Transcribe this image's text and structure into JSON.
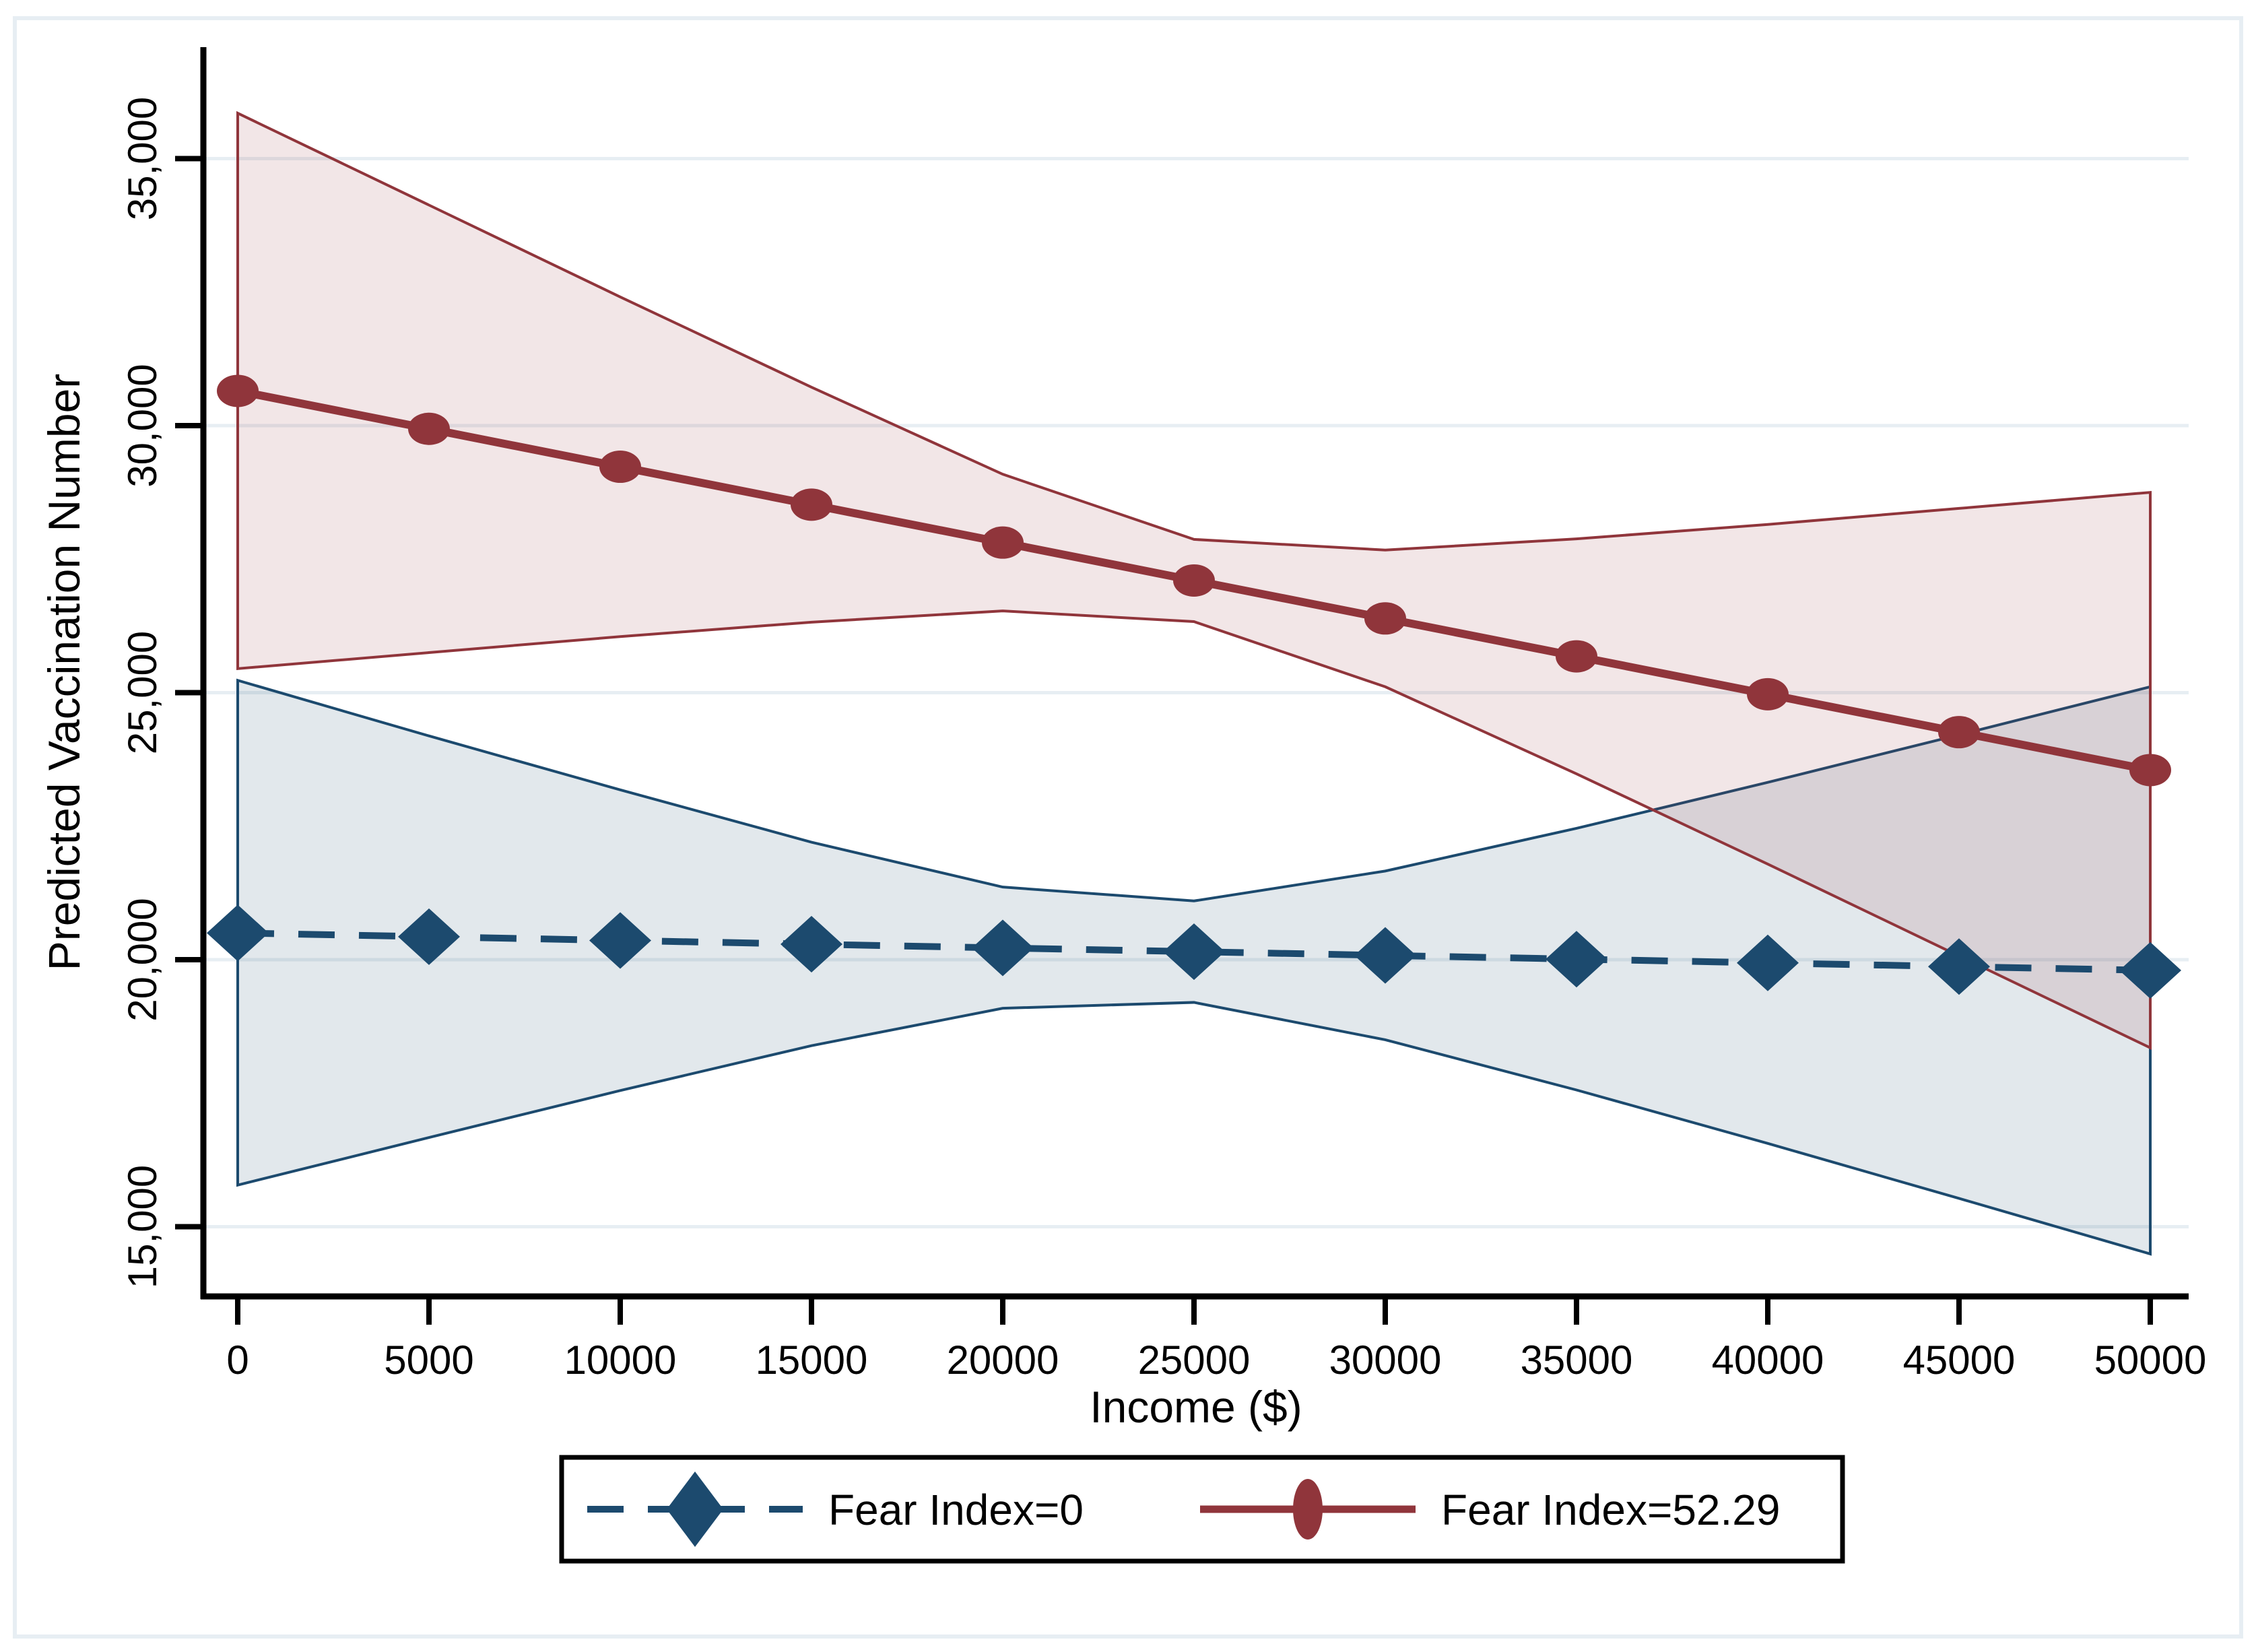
{
  "figure": {
    "background": "#ffffff",
    "outer_border_color": "#e7eef3",
    "plot_border_color": "#e7eef3"
  },
  "chart_data": {
    "type": "line",
    "title": "",
    "xlabel": "Income ($)",
    "ylabel": "Predicted Vaccination Number",
    "x": [
      0,
      5000,
      10000,
      15000,
      20000,
      25000,
      30000,
      35000,
      40000,
      45000,
      50000
    ],
    "x_tick_labels": [
      "0",
      "5000",
      "10000",
      "15000",
      "20000",
      "25000",
      "30000",
      "35000",
      "40000",
      "45000",
      "50000"
    ],
    "y_ticks": [
      15000,
      20000,
      25000,
      30000,
      35000
    ],
    "y_tick_labels": [
      "15,000",
      "20,000",
      "25,000",
      "30,000",
      "35,000"
    ],
    "xlim": [
      -900,
      51700
    ],
    "ylim": [
      13700,
      37100
    ],
    "grid": "horizontal",
    "legend_position": "bottom-boxed",
    "series": [
      {
        "name": "Fear Index=0",
        "line_style": "dashed",
        "marker": "diamond",
        "color": "#1c4a6e",
        "band_fill": "rgba(28,74,110,0.13)",
        "values": [
          20500,
          20430,
          20360,
          20290,
          20220,
          20150,
          20080,
          20010,
          19940,
          19870,
          19800
        ],
        "ci_upper": [
          25230,
          24190,
          23180,
          22200,
          21360,
          21100,
          21660,
          22460,
          23320,
          24210,
          25110
        ],
        "ci_lower": [
          15780,
          16670,
          17550,
          18390,
          19090,
          19200,
          18500,
          17560,
          16560,
          15530,
          14490
        ]
      },
      {
        "name": "Fear Index=52.29",
        "line_style": "solid",
        "marker": "circle",
        "color": "#90353b",
        "band_fill": "rgba(144,53,59,0.12)",
        "values": [
          30650,
          29940,
          29230,
          28520,
          27810,
          27100,
          26390,
          25680,
          24970,
          24260,
          23550
        ],
        "ci_upper": [
          35850,
          34130,
          32410,
          30720,
          29090,
          27870,
          27670,
          27880,
          28150,
          28450,
          28750
        ],
        "ci_lower": [
          25450,
          25750,
          26050,
          26320,
          26530,
          26330,
          25110,
          23480,
          21790,
          20070,
          18350
        ]
      }
    ],
    "legend": {
      "entries": [
        {
          "label": "Fear Index=0"
        },
        {
          "label": "Fear Index=52.29"
        }
      ]
    }
  }
}
